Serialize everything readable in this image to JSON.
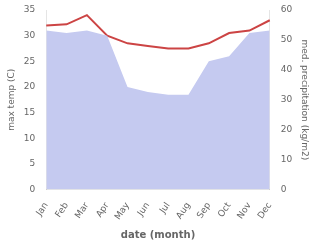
{
  "chart_data": {
    "type": "line",
    "categories": [
      "Jan",
      "Feb",
      "Mar",
      "Apr",
      "May",
      "Jun",
      "Jul",
      "Aug",
      "Sep",
      "Oct",
      "Nov",
      "Dec"
    ],
    "series": [
      {
        "type": "area",
        "color": "#c5caf0",
        "values": [
          31.0,
          30.5,
          31.0,
          30.0,
          20.0,
          19.0,
          18.5,
          18.5,
          25.0,
          26.0,
          30.5,
          31.0
        ]
      },
      {
        "type": "line",
        "color": "#cc4444",
        "values": [
          32.0,
          32.2,
          34.0,
          30.0,
          28.5,
          28.0,
          27.5,
          27.5,
          28.5,
          30.5,
          31.0,
          33.0
        ]
      }
    ],
    "xlabel": "date (month)",
    "ylabel": "max temp (C)",
    "y2label": "med. precipitation (kg/m2)",
    "ylim": [
      0,
      35
    ],
    "yticks": [
      0,
      5,
      10,
      15,
      20,
      25,
      30,
      35
    ],
    "y2lim": [
      0,
      60
    ],
    "y2ticks": [
      0,
      10,
      20,
      30,
      40,
      50,
      60
    ],
    "grid": false
  }
}
